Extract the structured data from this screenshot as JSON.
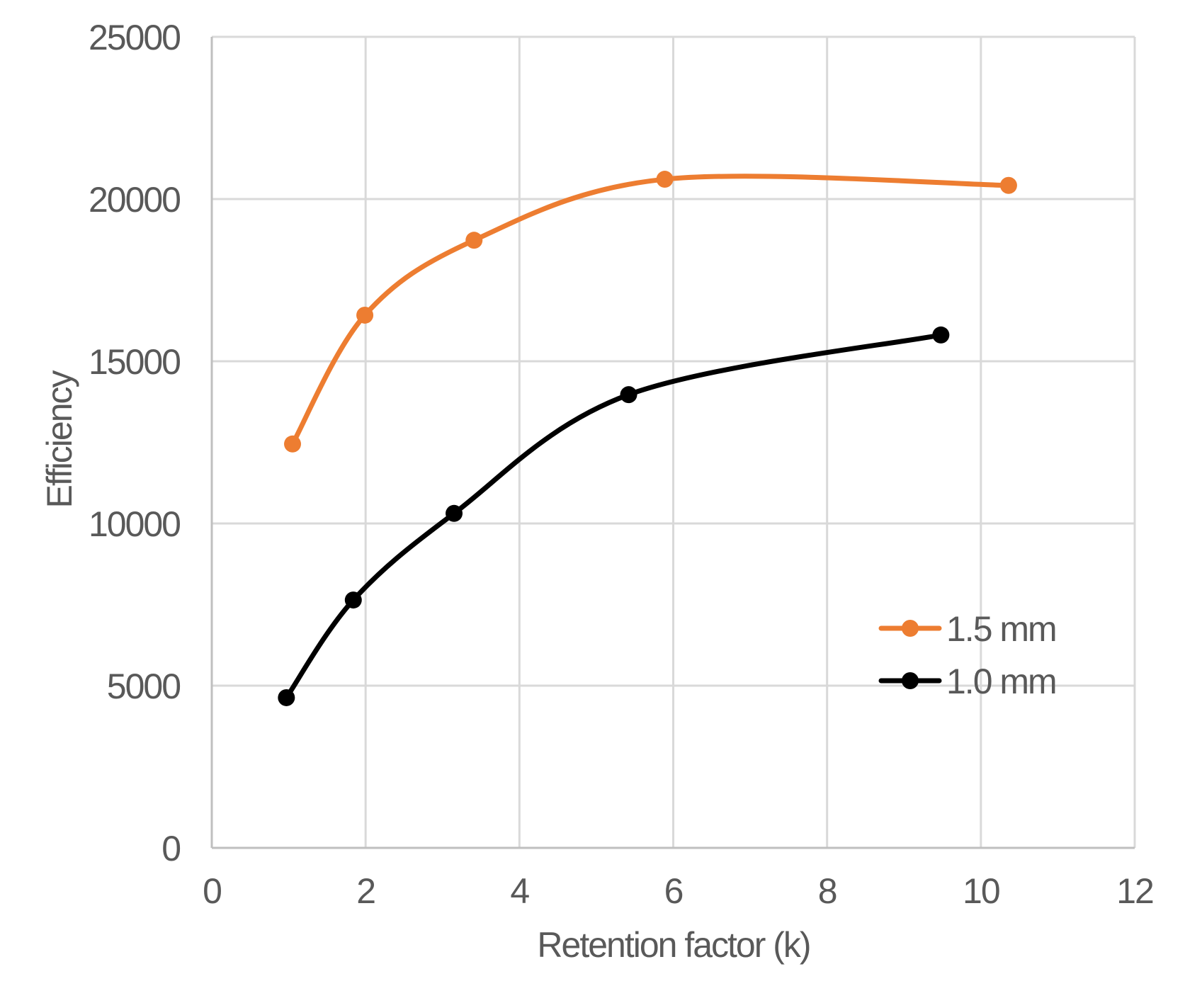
{
  "chart_data": {
    "type": "line",
    "title": "",
    "xlabel": "Retention factor (k)",
    "ylabel": "Efficiency",
    "xlim": [
      0,
      12
    ],
    "ylim": [
      0,
      25000
    ],
    "x_ticks": [
      0,
      2,
      4,
      6,
      8,
      10,
      12
    ],
    "y_ticks": [
      0,
      5000,
      10000,
      15000,
      20000,
      25000
    ],
    "x_tick_labels": [
      "0",
      "2",
      "4",
      "6",
      "8",
      "10",
      "12"
    ],
    "y_tick_labels": [
      "0",
      "5000",
      "10000",
      "15000",
      "20000",
      "25000"
    ],
    "grid": true,
    "smoothed": true,
    "legend_position": "inside-right",
    "series": [
      {
        "name": "1.5 mm",
        "color": "#ED7D31",
        "marker": "circle",
        "x": [
          1.05,
          1.99,
          3.41,
          5.89,
          10.36
        ],
        "y": [
          12450,
          16420,
          18730,
          20610,
          20420
        ]
      },
      {
        "name": "1.0 mm",
        "color": "#000000",
        "marker": "circle",
        "x": [
          0.97,
          1.84,
          3.15,
          5.42,
          9.48
        ],
        "y": [
          4630,
          7640,
          10310,
          13970,
          15810
        ]
      }
    ]
  },
  "legend": {
    "items": [
      {
        "label": "1.5 mm",
        "color": "#ED7D31"
      },
      {
        "label": "1.0 mm",
        "color": "#000000"
      }
    ]
  },
  "axes": {
    "x_title": "Retention factor (k)",
    "y_title": "Efficiency"
  },
  "colors": {
    "text": "#595959",
    "grid": "#d9d9d9",
    "axis": "#bfbfbf",
    "background": "#ffffff"
  }
}
